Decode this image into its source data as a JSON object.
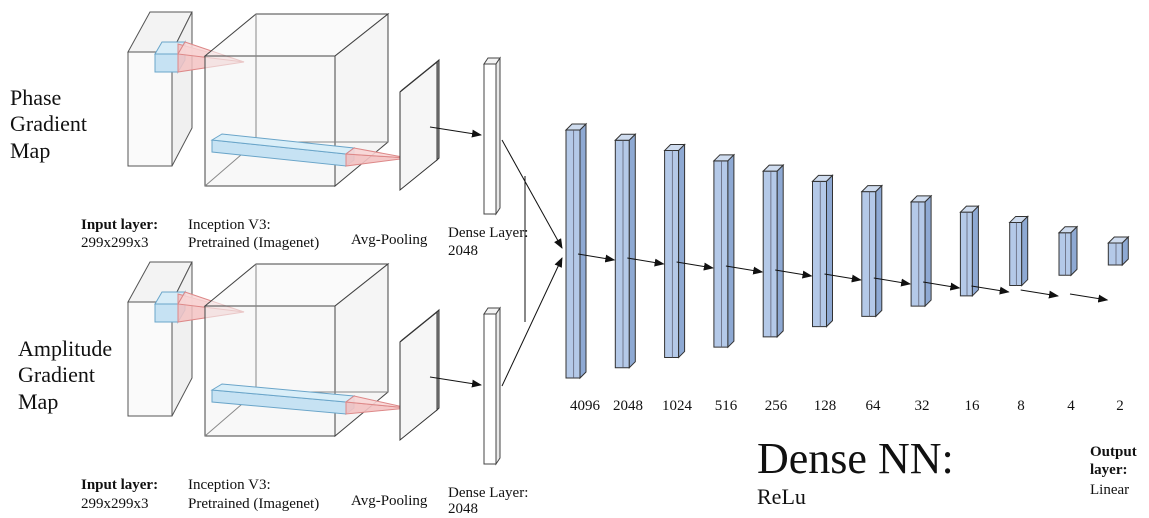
{
  "branches": [
    {
      "name": "Phase\nGradient\nMap",
      "input_label_bold": "Input layer:",
      "input_label": "299x299x3",
      "inception_label": "Inception V3:",
      "inception_sub": "Pretrained (Imagenet)",
      "pool_label": "Avg-Pooling",
      "dense_label": "Dense Layer:",
      "dense_units": "2048"
    },
    {
      "name": "Amplitude\nGradient\nMap",
      "input_label_bold": "Input layer:",
      "input_label": "299x299x3",
      "inception_label": "Inception V3:",
      "inception_sub": "Pretrained (Imagenet)",
      "pool_label": "Avg-Pooling",
      "dense_label": "Dense Layer:",
      "dense_units": "2048"
    }
  ],
  "dense_nn": {
    "title": "Dense NN:",
    "activation": "ReLu",
    "layer_sizes": [
      "4096",
      "2048",
      "1024",
      "516",
      "256",
      "128",
      "64",
      "32",
      "16",
      "8",
      "4",
      "2"
    ],
    "output_label_1": "Output",
    "output_label_2": "layer:",
    "output_activation": "Linear"
  },
  "colors": {
    "layer_fill": "#b4c9e8",
    "layer_dark": "#8ea9d3",
    "kernel_fill": "#f3c2c2",
    "input_highlight": "#c6e2f3",
    "line": "#111111"
  }
}
